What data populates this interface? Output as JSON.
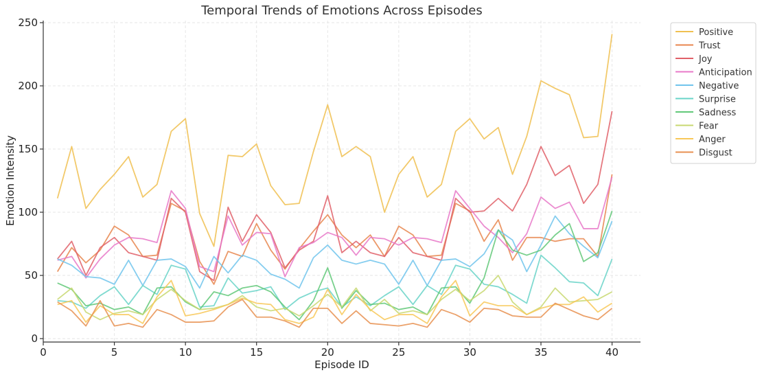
{
  "chart_data": {
    "type": "line",
    "title": "Temporal Trends of Emotions Across Episodes",
    "xlabel": "Episode ID",
    "ylabel": "Emotion Intensity",
    "xlim": [
      0,
      42
    ],
    "ylim": [
      0,
      250
    ],
    "xticks": [
      "0",
      "5",
      "10",
      "15",
      "20",
      "25",
      "30",
      "35",
      "40"
    ],
    "yticks": [
      "0",
      "50",
      "100",
      "150",
      "200",
      "250"
    ],
    "grid": true,
    "legend_position": "outside-right-top",
    "x": [
      1,
      2,
      3,
      4,
      5,
      6,
      7,
      8,
      9,
      10,
      11,
      12,
      13,
      14,
      15,
      16,
      17,
      18,
      19,
      20,
      21,
      22,
      23,
      24,
      25,
      26,
      27,
      28,
      29,
      30,
      31,
      32,
      33,
      34,
      35,
      36,
      37,
      38,
      39,
      40
    ],
    "series": [
      {
        "name": "Positive",
        "color": "#f0c050",
        "values": [
          111,
          152,
          103,
          118,
          130,
          144,
          112,
          122,
          164,
          174,
          99,
          73,
          145,
          144,
          154,
          121,
          106,
          107,
          148,
          185,
          144,
          152,
          144,
          100,
          130,
          144,
          112,
          122,
          164,
          174,
          158,
          167,
          130,
          160,
          204,
          198,
          193,
          159,
          160,
          241
        ]
      },
      {
        "name": "Trust",
        "color": "#e8864e",
        "values": [
          53,
          72,
          60,
          70,
          89,
          82,
          65,
          66,
          107,
          101,
          61,
          43,
          69,
          65,
          91,
          70,
          55,
          71,
          85,
          98,
          82,
          72,
          82,
          65,
          89,
          82,
          65,
          66,
          107,
          101,
          77,
          94,
          62,
          80,
          80,
          77,
          79,
          79,
          65,
          130
        ]
      },
      {
        "name": "Joy",
        "color": "#e06068",
        "values": [
          63,
          77,
          50,
          72,
          80,
          68,
          65,
          62,
          111,
          100,
          53,
          46,
          104,
          77,
          98,
          84,
          56,
          70,
          77,
          113,
          68,
          77,
          68,
          65,
          80,
          68,
          65,
          62,
          111,
          100,
          101,
          111,
          101,
          122,
          152,
          129,
          137,
          107,
          122,
          180
        ]
      },
      {
        "name": "Anticipation",
        "color": "#e878c8",
        "values": [
          62,
          65,
          48,
          63,
          74,
          80,
          79,
          76,
          117,
          103,
          57,
          53,
          97,
          74,
          84,
          83,
          49,
          72,
          76,
          84,
          80,
          66,
          80,
          79,
          74,
          80,
          79,
          76,
          117,
          103,
          89,
          80,
          68,
          83,
          112,
          103,
          108,
          87,
          87,
          128
        ]
      },
      {
        "name": "Negative",
        "color": "#70c4ec",
        "values": [
          63,
          58,
          49,
          48,
          43,
          62,
          42,
          62,
          63,
          57,
          40,
          65,
          52,
          66,
          62,
          51,
          47,
          40,
          64,
          74,
          62,
          59,
          62,
          59,
          43,
          62,
          42,
          62,
          63,
          57,
          67,
          86,
          78,
          53,
          74,
          97,
          83,
          73,
          64,
          93
        ]
      },
      {
        "name": "Surprise",
        "color": "#68d4c8",
        "values": [
          30,
          29,
          24,
          34,
          41,
          27,
          42,
          35,
          58,
          55,
          25,
          26,
          48,
          36,
          38,
          41,
          23,
          32,
          37,
          40,
          25,
          33,
          26,
          34,
          41,
          27,
          42,
          35,
          58,
          55,
          43,
          41,
          35,
          28,
          66,
          56,
          45,
          44,
          34,
          63
        ]
      },
      {
        "name": "Sadness",
        "color": "#60c878",
        "values": [
          44,
          39,
          26,
          28,
          23,
          25,
          19,
          40,
          41,
          29,
          23,
          37,
          34,
          40,
          42,
          37,
          25,
          15,
          30,
          56,
          24,
          38,
          27,
          28,
          23,
          25,
          19,
          40,
          41,
          28,
          48,
          86,
          70,
          66,
          70,
          82,
          91,
          61,
          68,
          101
        ]
      },
      {
        "name": "Fear",
        "color": "#c8d870",
        "values": [
          31,
          40,
          21,
          15,
          20,
          22,
          19,
          31,
          39,
          30,
          23,
          24,
          27,
          34,
          25,
          22,
          24,
          18,
          26,
          35,
          25,
          40,
          22,
          31,
          20,
          22,
          19,
          31,
          39,
          30,
          38,
          50,
          29,
          19,
          25,
          40,
          29,
          30,
          31,
          37
        ]
      },
      {
        "name": "Anger",
        "color": "#f8c858",
        "values": [
          27,
          30,
          13,
          26,
          19,
          19,
          12,
          33,
          46,
          18,
          20,
          23,
          27,
          32,
          28,
          27,
          15,
          12,
          17,
          39,
          19,
          35,
          23,
          15,
          19,
          19,
          12,
          33,
          46,
          18,
          29,
          26,
          26,
          19,
          24,
          27,
          27,
          33,
          21,
          28
        ]
      },
      {
        "name": "Disgust",
        "color": "#e89050",
        "values": [
          29,
          22,
          10,
          30,
          10,
          12,
          9,
          23,
          19,
          13,
          13,
          14,
          25,
          31,
          17,
          17,
          14,
          9,
          24,
          24,
          12,
          22,
          12,
          11,
          10,
          12,
          9,
          23,
          19,
          13,
          24,
          23,
          18,
          17,
          17,
          28,
          23,
          18,
          15,
          24
        ]
      }
    ]
  }
}
